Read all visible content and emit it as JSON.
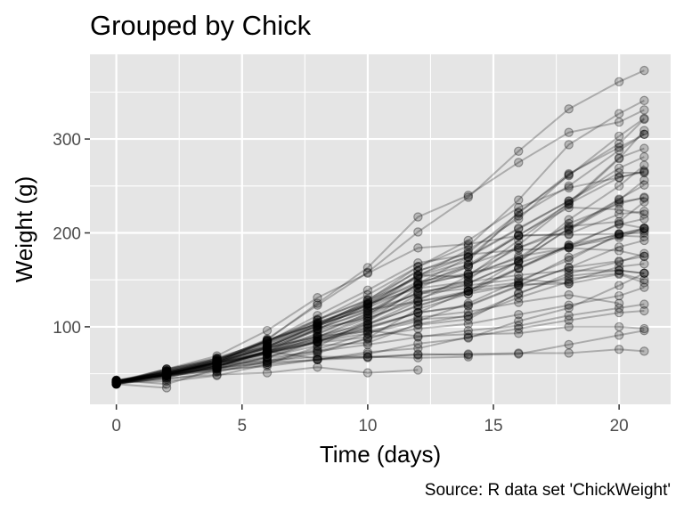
{
  "chart_data": {
    "type": "line",
    "title": "Grouped by Chick",
    "xlabel": "Time (days)",
    "ylabel": "Weight (g)",
    "caption": "Source: R data set 'ChickWeight'",
    "xlim": [
      -1.05,
      22.05
    ],
    "ylim": [
      17.4,
      390.2
    ],
    "x_ticks": [
      0,
      5,
      10,
      15,
      20
    ],
    "x_tick_labels": [
      "0",
      "5",
      "10",
      "15",
      "20"
    ],
    "y_ticks": [
      100,
      200,
      300
    ],
    "y_tick_labels": [
      "100",
      "200",
      "300"
    ],
    "grid": true,
    "background": "#e5e5e5",
    "grid_color": "#ffffff",
    "series_color": "#000000",
    "line_opacity": 0.25,
    "point_opacity": 0.25,
    "x": [
      0,
      2,
      4,
      6,
      8,
      10,
      12,
      14,
      16,
      18,
      20,
      21
    ],
    "series": [
      {
        "values": [
          42,
          51,
          59,
          64,
          76,
          93,
          106,
          125,
          149,
          171,
          199,
          205
        ]
      },
      {
        "values": [
          40,
          49,
          58,
          72,
          84,
          103,
          122,
          138,
          162,
          187,
          209,
          215
        ]
      },
      {
        "values": [
          43,
          39,
          55,
          67,
          84,
          99,
          115,
          138,
          163,
          187,
          198,
          202
        ]
      },
      {
        "values": [
          42,
          49,
          56,
          67,
          74,
          87,
          102,
          108,
          136,
          154,
          160,
          157
        ]
      },
      {
        "values": [
          41,
          42,
          48,
          60,
          79,
          106,
          141,
          164,
          197,
          199,
          220,
          223
        ]
      },
      {
        "values": [
          41,
          49,
          59,
          74,
          97,
          124,
          141,
          148,
          155,
          160,
          160,
          157
        ]
      },
      {
        "values": [
          41,
          49,
          57,
          71,
          89,
          112,
          146,
          174,
          218,
          250,
          288,
          305
        ]
      },
      {
        "values": [
          42,
          50,
          61,
          71,
          84,
          93,
          110,
          116,
          126,
          134,
          125,
          null
        ]
      },
      {
        "values": [
          42,
          51,
          59,
          68,
          85,
          96,
          90,
          92,
          93,
          100,
          100,
          98
        ]
      },
      {
        "values": [
          41,
          44,
          52,
          63,
          74,
          81,
          89,
          96,
          101,
          112,
          120,
          124
        ]
      },
      {
        "values": [
          43,
          51,
          63,
          84,
          112,
          139,
          168,
          177,
          182,
          184,
          181,
          175
        ]
      },
      {
        "values": [
          41,
          49,
          56,
          62,
          72,
          88,
          119,
          135,
          162,
          185,
          195,
          205
        ]
      },
      {
        "values": [
          41,
          48,
          53,
          60,
          65,
          67,
          71,
          70,
          71,
          81,
          91,
          96
        ]
      },
      {
        "values": [
          41,
          49,
          62,
          79,
          101,
          128,
          164,
          192,
          227,
          248,
          259,
          266
        ]
      },
      {
        "values": [
          41,
          49,
          56,
          64,
          68,
          68,
          67,
          68,
          null,
          null,
          null,
          null
        ]
      },
      {
        "values": [
          41,
          45,
          49,
          51,
          57,
          51,
          54,
          null,
          null,
          null,
          null,
          null
        ]
      },
      {
        "values": [
          42,
          51,
          61,
          72,
          83,
          89,
          98,
          103,
          113,
          123,
          133,
          142
        ]
      },
      {
        "values": [
          39,
          35,
          null,
          null,
          null,
          null,
          null,
          null,
          null,
          null,
          null,
          null
        ]
      },
      {
        "values": [
          43,
          48,
          55,
          62,
          65,
          71,
          82,
          88,
          106,
          120,
          144,
          157
        ]
      },
      {
        "values": [
          41,
          47,
          54,
          58,
          65,
          73,
          77,
          89,
          98,
          107,
          115,
          117
        ]
      },
      {
        "values": [
          40,
          50,
          62,
          86,
          125,
          163,
          217,
          240,
          275,
          307,
          318,
          331
        ]
      },
      {
        "values": [
          41,
          55,
          64,
          77,
          90,
          95,
          108,
          111,
          131,
          148,
          164,
          167
        ]
      },
      {
        "values": [
          43,
          52,
          61,
          73,
          90,
          103,
          127,
          135,
          145,
          163,
          170,
          175
        ]
      },
      {
        "values": [
          42,
          52,
          58,
          74,
          66,
          68,
          70,
          71,
          72,
          72,
          76,
          74
        ]
      },
      {
        "values": [
          40,
          49,
          62,
          78,
          102,
          124,
          146,
          164,
          197,
          231,
          259,
          265
        ]
      },
      {
        "values": [
          42,
          48,
          57,
          74,
          93,
          114,
          136,
          147,
          169,
          205,
          236,
          251
        ]
      },
      {
        "values": [
          39,
          46,
          58,
          73,
          87,
          100,
          115,
          123,
          144,
          163,
          185,
          192
        ]
      },
      {
        "values": [
          39,
          46,
          58,
          73,
          92,
          114,
          145,
          156,
          184,
          207,
          212,
          233
        ]
      },
      {
        "values": [
          39,
          48,
          59,
          74,
          87,
          106,
          134,
          150,
          187,
          230,
          279,
          309
        ]
      },
      {
        "values": [
          42,
          48,
          59,
          72,
          85,
          98,
          115,
          122,
          143,
          151,
          157,
          150
        ]
      },
      {
        "values": [
          42,
          53,
          62,
          73,
          85,
          102,
          123,
          138,
          170,
          204,
          235,
          256
        ]
      },
      {
        "values": [
          41,
          49,
          65,
          82,
          107,
          129,
          159,
          179,
          221,
          263,
          291,
          305
        ]
      },
      {
        "values": [
          39,
          50,
          63,
          77,
          96,
          111,
          137,
          144,
          151,
          146,
          156,
          147
        ]
      },
      {
        "values": [
          41,
          49,
          63,
          85,
          107,
          134,
          164,
          186,
          235,
          294,
          327,
          341
        ]
      },
      {
        "values": [
          41,
          53,
          64,
          87,
          123,
          158,
          201,
          238,
          287,
          332,
          361,
          373
        ]
      },
      {
        "values": [
          39,
          48,
          61,
          76,
          98,
          116,
          145,
          166,
          198,
          227,
          225,
          220
        ]
      },
      {
        "values": [
          41,
          48,
          56,
          68,
          80,
          83,
          103,
          112,
          135,
          157,
          169,
          178
        ]
      },
      {
        "values": [
          41,
          49,
          61,
          74,
          98,
          109,
          128,
          154,
          192,
          232,
          280,
          290
        ]
      },
      {
        "values": [
          42,
          50,
          61,
          78,
          89,
          109,
          130,
          146,
          170,
          214,
          250,
          272
        ]
      },
      {
        "values": [
          41,
          55,
          66,
          79,
          101,
          120,
          154,
          182,
          215,
          262,
          295,
          321
        ]
      },
      {
        "values": [
          42,
          51,
          66,
          85,
          103,
          124,
          155,
          153,
          175,
          184,
          199,
          204
        ]
      },
      {
        "values": [
          42,
          49,
          63,
          84,
          103,
          126,
          160,
          174,
          204,
          234,
          269,
          281
        ]
      },
      {
        "values": [
          42,
          55,
          69,
          96,
          131,
          157,
          184,
          188,
          197,
          198,
          199,
          200
        ]
      },
      {
        "values": [
          42,
          51,
          65,
          86,
          103,
          118,
          127,
          138,
          145,
          146,
          null,
          null
        ]
      },
      {
        "values": [
          41,
          50,
          61,
          78,
          98,
          117,
          135,
          141,
          147,
          174,
          197,
          196
        ]
      },
      {
        "values": [
          40,
          52,
          62,
          82,
          101,
          120,
          144,
          156,
          173,
          210,
          231,
          238
        ]
      },
      {
        "values": [
          41,
          53,
          66,
          79,
          100,
          123,
          148,
          157,
          168,
          185,
          210,
          205
        ]
      },
      {
        "values": [
          39,
          50,
          62,
          80,
          104,
          125,
          154,
          170,
          222,
          261,
          303,
          322
        ]
      },
      {
        "values": [
          40,
          53,
          64,
          85,
          108,
          128,
          152,
          166,
          184,
          203,
          233,
          237
        ]
      },
      {
        "values": [
          41,
          54,
          67,
          84,
          105,
          122,
          155,
          175,
          205,
          234,
          264,
          264
        ]
      }
    ]
  }
}
